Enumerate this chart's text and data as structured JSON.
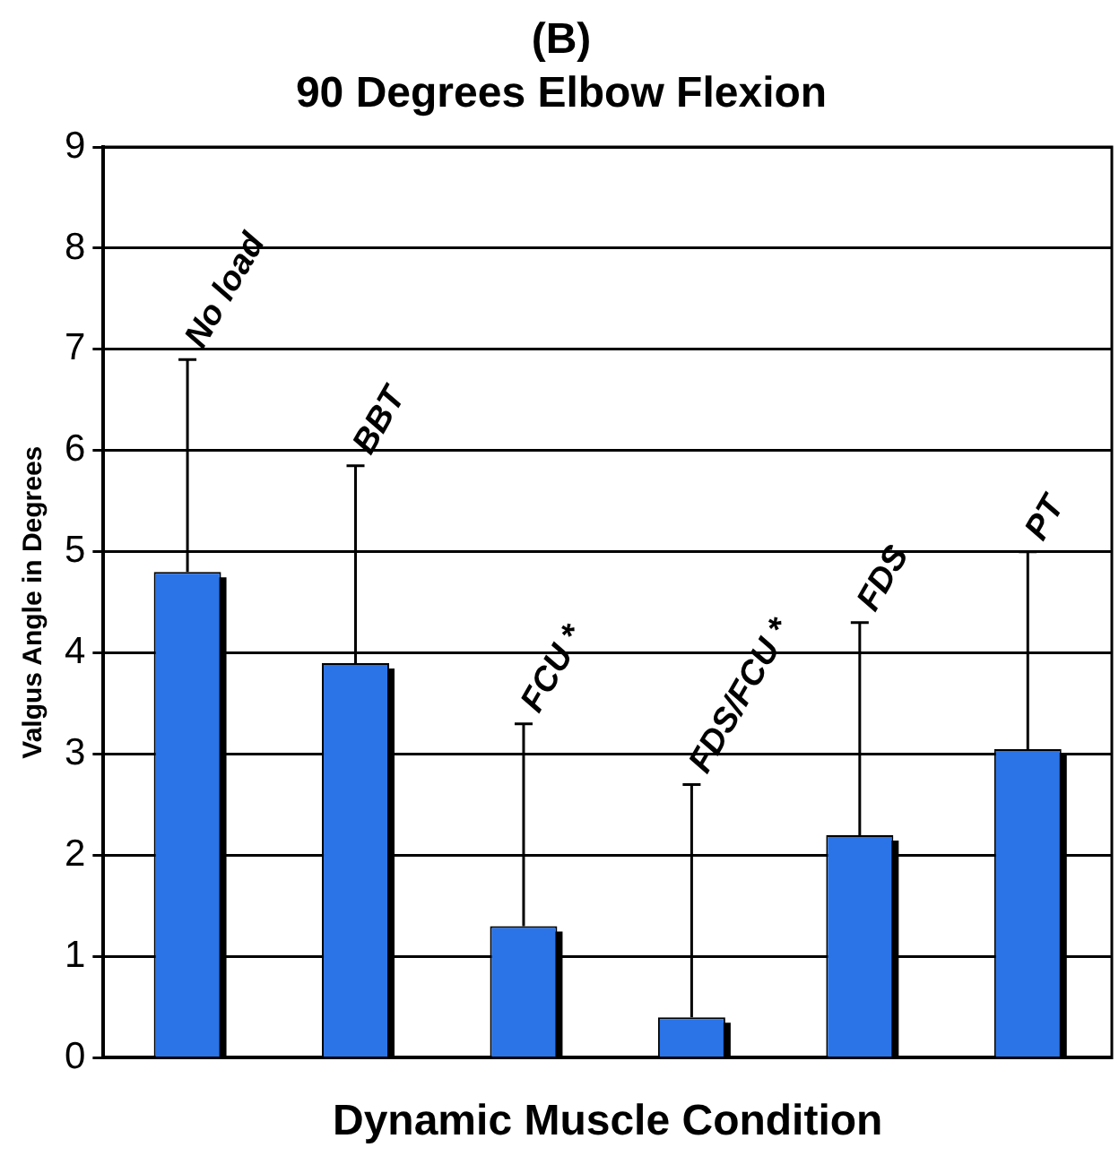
{
  "chart_data": {
    "type": "bar",
    "title": "(B)\n90 Degrees Elbow Flexion",
    "xlabel": "Dynamic Muscle Condition",
    "ylabel": "Valgus Angle in Degrees",
    "categories": [
      "No load",
      "BBT",
      "FCU *",
      "FDS/FCU *",
      "FDS",
      "PT"
    ],
    "values": [
      4.8,
      3.9,
      1.3,
      0.4,
      2.2,
      3.05
    ],
    "errors": [
      [
        4.8,
        6.9
      ],
      [
        3.9,
        5.85
      ],
      [
        1.3,
        3.3
      ],
      [
        0.4,
        2.7
      ],
      [
        2.2,
        4.3
      ],
      [
        3.05,
        5.0
      ]
    ],
    "color": "#2a74e8",
    "ylim": [
      0,
      9
    ],
    "yticks": [
      0,
      1,
      2,
      3,
      4,
      5,
      6,
      7,
      8,
      9
    ],
    "grid": "y",
    "tick_labels": "y",
    "legend": false
  }
}
